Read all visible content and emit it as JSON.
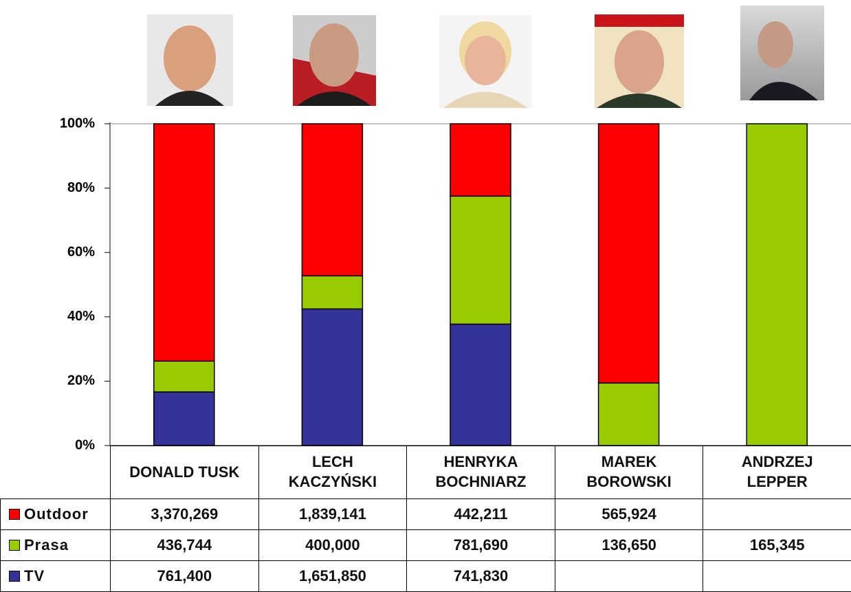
{
  "chart_data": {
    "type": "stacked_percent_bar",
    "categories": [
      "DONALD TUSK",
      "LECH\nKACZYŃSKI",
      "HENRYKA\nBOCHNIARZ",
      "MAREK\nBOROWSKI",
      "ANDRZEJ\nLEPPER"
    ],
    "series": [
      {
        "name": "Outdoor",
        "color": "#ff0000",
        "values": [
          3370269,
          1839141,
          442211,
          565924,
          null
        ],
        "value_labels": [
          "3,370,269",
          "1,839,141",
          "442,211",
          "565,924",
          null
        ]
      },
      {
        "name": "Prasa",
        "color": "#99cc00",
        "values": [
          436744,
          400000,
          781690,
          136650,
          165345
        ],
        "value_labels": [
          "436,744",
          "400,000",
          "781,690",
          "136,650",
          "165,345"
        ]
      },
      {
        "name": "TV",
        "color": "#333399",
        "values": [
          761400,
          1651850,
          741830,
          null,
          null
        ],
        "value_labels": [
          "761,400",
          "1,651,850",
          "741,830",
          null,
          null
        ]
      }
    ],
    "ylim": [
      0,
      100
    ],
    "yticks": [
      {
        "value": 0,
        "label": "0%"
      },
      {
        "value": 20,
        "label": "20%"
      },
      {
        "value": 40,
        "label": "40%"
      },
      {
        "value": 60,
        "label": "60%"
      },
      {
        "value": 80,
        "label": "80%"
      },
      {
        "value": 100,
        "label": "100%"
      }
    ],
    "grid": false
  }
}
